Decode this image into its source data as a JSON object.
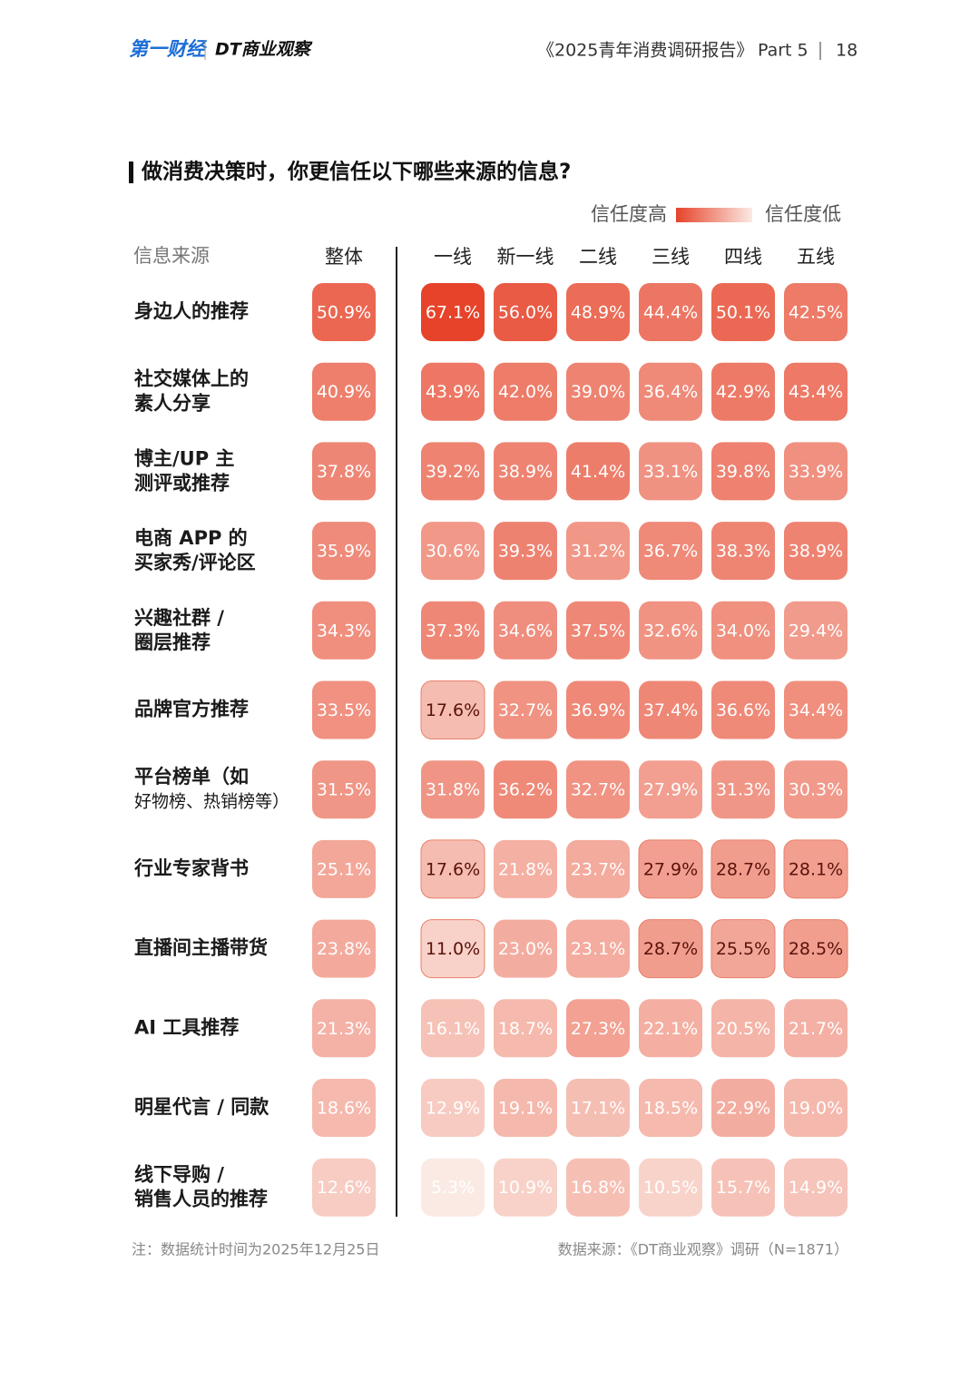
{
  "header": {
    "logo1": "第一财经",
    "logo2": "DT商业观察",
    "report": "《2025青年消费调研报告》",
    "part": "Part 5",
    "page": "18"
  },
  "chart_data": {
    "type": "heatmap",
    "title": "做消费决策时，你更信任以下哪些来源的信息?",
    "legend": {
      "high": "信任度高",
      "low": "信任度低"
    },
    "row_header": "信息来源",
    "columns": [
      "整体",
      "一线",
      "新一线",
      "二线",
      "三线",
      "四线",
      "五线"
    ],
    "rows": [
      [
        "身边人的推荐"
      ],
      [
        "社交媒体上的",
        "素人分享"
      ],
      [
        "博主/UP 主",
        "测评或推荐"
      ],
      [
        "电商 APP 的",
        "买家秀/评论区"
      ],
      [
        "兴趣社群 /",
        "圈层推荐"
      ],
      [
        "品牌官方推荐"
      ],
      [
        "平台榜单（如",
        "好物榜、热销榜等）"
      ],
      [
        "行业专家背书"
      ],
      [
        "直播间主播带货"
      ],
      [
        "AI 工具推荐"
      ],
      [
        "明星代言 / 同款"
      ],
      [
        "线下导购 /",
        "销售人员的推荐"
      ]
    ],
    "values": [
      [
        50.9,
        67.1,
        56.0,
        48.9,
        44.4,
        50.1,
        42.5
      ],
      [
        40.9,
        43.9,
        42.0,
        39.0,
        36.4,
        42.9,
        43.4
      ],
      [
        37.8,
        39.2,
        38.9,
        41.4,
        33.1,
        39.8,
        33.9
      ],
      [
        35.9,
        30.6,
        39.3,
        31.2,
        36.7,
        38.3,
        38.9
      ],
      [
        34.3,
        37.3,
        34.6,
        37.5,
        32.6,
        34.0,
        29.4
      ],
      [
        33.5,
        17.6,
        32.7,
        36.9,
        37.4,
        36.6,
        34.4
      ],
      [
        31.5,
        31.8,
        36.2,
        32.7,
        27.9,
        31.3,
        30.3
      ],
      [
        25.1,
        17.6,
        21.8,
        23.7,
        27.9,
        28.7,
        28.1
      ],
      [
        23.8,
        11.0,
        23.0,
        23.1,
        28.7,
        25.5,
        28.5
      ],
      [
        21.3,
        16.1,
        18.7,
        27.3,
        22.1,
        20.5,
        21.7
      ],
      [
        18.6,
        12.9,
        19.1,
        17.1,
        18.5,
        22.9,
        19.0
      ],
      [
        12.6,
        5.3,
        10.9,
        16.8,
        10.5,
        15.7,
        14.9
      ]
    ],
    "value_labels": [
      [
        "50.9%",
        "67.1%",
        "56.0%",
        "48.9%",
        "44.4%",
        "50.1%",
        "42.5%"
      ],
      [
        "40.9%",
        "43.9%",
        "42.0%",
        "39.0%",
        "36.4%",
        "42.9%",
        "43.4%"
      ],
      [
        "37.8%",
        "39.2%",
        "38.9%",
        "41.4%",
        "33.1%",
        "39.8%",
        "33.9%"
      ],
      [
        "35.9%",
        "30.6%",
        "39.3%",
        "31.2%",
        "36.7%",
        "38.3%",
        "38.9%"
      ],
      [
        "34.3%",
        "37.3%",
        "34.6%",
        "37.5%",
        "32.6%",
        "34.0%",
        "29.4%"
      ],
      [
        "33.5%",
        "17.6%",
        "32.7%",
        "36.9%",
        "37.4%",
        "36.6%",
        "34.4%"
      ],
      [
        "31.5%",
        "31.8%",
        "36.2%",
        "32.7%",
        "27.9%",
        "31.3%",
        "30.3%"
      ],
      [
        "25.1%",
        "17.6%",
        "21.8%",
        "23.7%",
        "27.9%",
        "28.7%",
        "28.1%"
      ],
      [
        "23.8%",
        "11.0%",
        "23.0%",
        "23.1%",
        "28.7%",
        "25.5%",
        "28.5%"
      ],
      [
        "21.3%",
        "16.1%",
        "18.7%",
        "27.3%",
        "22.1%",
        "20.5%",
        "21.7%"
      ],
      [
        "18.6%",
        "12.9%",
        "19.1%",
        "17.1%",
        "18.5%",
        "22.9%",
        "19.0%"
      ],
      [
        "12.6%",
        "5.3%",
        "10.9%",
        "16.8%",
        "10.5%",
        "15.7%",
        "14.9%"
      ]
    ],
    "colors": [
      "#e6432a",
      "#fbeae4"
    ],
    "dark_text_cells": [
      [
        5,
        1
      ],
      [
        7,
        1
      ],
      [
        7,
        4
      ],
      [
        7,
        5
      ],
      [
        7,
        6
      ],
      [
        8,
        1
      ],
      [
        8,
        4
      ],
      [
        8,
        5
      ],
      [
        8,
        6
      ]
    ],
    "note": "注：数据统计时间为2025年12月25日",
    "source": "数据来源：《DT商业观察》调研（N=1871）"
  }
}
